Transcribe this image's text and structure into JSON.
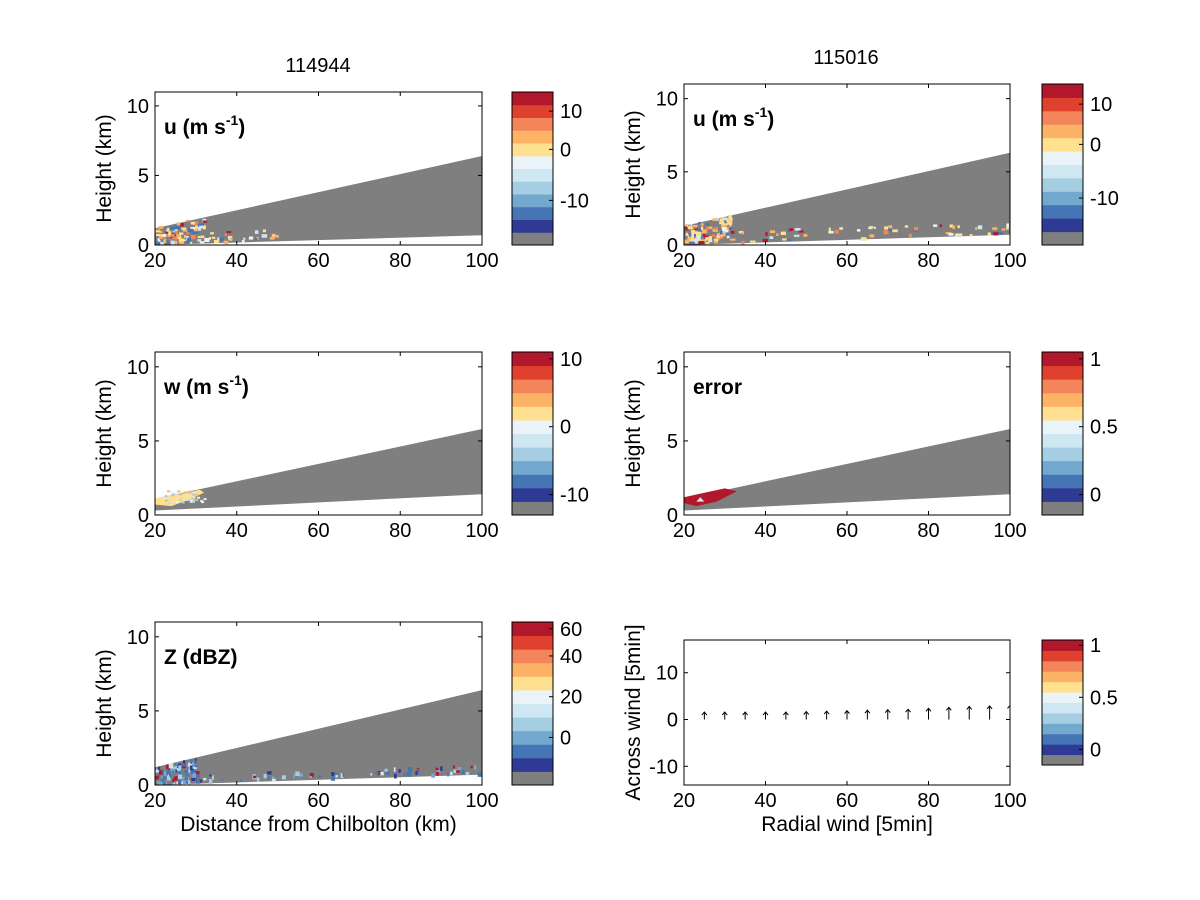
{
  "palette": [
    "#7f7f7f",
    "#2f3a95",
    "#4575b4",
    "#74a9cf",
    "#a6cee3",
    "#cfe7f2",
    "#eaf3f7",
    "#fee090",
    "#fdb366",
    "#f4845a",
    "#e0412e",
    "#b2182b"
  ],
  "chart_data": [
    {
      "id": "u-left",
      "type": "heatmap",
      "title": "114944",
      "label": "u (m s",
      "label_sup": "-1",
      "label_tail": ")",
      "ylabel": "Height (km)",
      "xlabel": "",
      "xlim": [
        20,
        100
      ],
      "ylim": [
        0,
        11
      ],
      "xticks": [
        20,
        40,
        60,
        80,
        100
      ],
      "yticks": [
        0,
        5,
        10
      ],
      "wedge": {
        "bottom_start": 0.0,
        "bottom_end": 0.7,
        "top_start": 1.2,
        "top_end": 6.4
      },
      "speckle": "near",
      "colorbar": {
        "ticks": [
          {
            "label": "10",
            "level": 10
          },
          {
            "label": "0",
            "level": 7
          },
          {
            "label": "-10",
            "level": 3
          }
        ]
      }
    },
    {
      "id": "u-right",
      "type": "heatmap",
      "title": "115016",
      "label": "u (m s",
      "label_sup": "-1",
      "label_tail": ")",
      "ylabel": "Height (km)",
      "xlabel": "",
      "xlim": [
        20,
        100
      ],
      "ylim": [
        0,
        11
      ],
      "xticks": [
        20,
        40,
        60,
        80,
        100
      ],
      "yticks": [
        0,
        5,
        10
      ],
      "wedge": {
        "bottom_start": 0.0,
        "bottom_end": 0.7,
        "top_start": 1.3,
        "top_end": 6.3
      },
      "speckle": "wide",
      "colorbar": {
        "ticks": [
          {
            "label": "10",
            "level": 10
          },
          {
            "label": "0",
            "level": 7
          },
          {
            "label": "-10",
            "level": 3
          }
        ]
      }
    },
    {
      "id": "w-left",
      "type": "heatmap",
      "title": "",
      "label": "w (m s",
      "label_sup": "-1",
      "label_tail": ")",
      "ylabel": "Height (km)",
      "xlabel": "",
      "xlim": [
        20,
        100
      ],
      "ylim": [
        0,
        11
      ],
      "xticks": [
        20,
        40,
        60,
        80,
        100
      ],
      "yticks": [
        0,
        5,
        10
      ],
      "wedge": {
        "bottom_start": 0.3,
        "bottom_end": 1.4,
        "top_start": 1.1,
        "top_end": 5.8
      },
      "speckle": "wblob",
      "colorbar": {
        "ticks": [
          {
            "label": "10",
            "level": 11
          },
          {
            "label": "0",
            "level": 6
          },
          {
            "label": "-10",
            "level": 1
          }
        ]
      }
    },
    {
      "id": "error-right",
      "type": "heatmap",
      "title": "",
      "label": "error",
      "label_sup": "",
      "label_tail": "",
      "ylabel": "Height (km)",
      "xlabel": "",
      "xlim": [
        20,
        100
      ],
      "ylim": [
        0,
        11
      ],
      "xticks": [
        20,
        40,
        60,
        80,
        100
      ],
      "yticks": [
        0,
        5,
        10
      ],
      "wedge": {
        "bottom_start": 0.3,
        "bottom_end": 1.4,
        "top_start": 1.1,
        "top_end": 5.8
      },
      "speckle": "errblob",
      "colorbar": {
        "ticks": [
          {
            "label": "1",
            "level": 11
          },
          {
            "label": "0.5",
            "level": 6
          },
          {
            "label": "0",
            "level": 1
          }
        ]
      }
    },
    {
      "id": "z-left",
      "type": "heatmap",
      "title": "",
      "label": "Z (dBZ)",
      "label_sup": "",
      "label_tail": "",
      "ylabel": "Height (km)",
      "xlabel": "Distance from Chilbolton (km)",
      "xlim": [
        20,
        100
      ],
      "ylim": [
        0,
        11
      ],
      "xticks": [
        20,
        40,
        60,
        80,
        100
      ],
      "yticks": [
        0,
        5,
        10
      ],
      "wedge": {
        "bottom_start": 0.0,
        "bottom_end": 0.7,
        "top_start": 1.2,
        "top_end": 6.4
      },
      "speckle": "zscatter",
      "colorbar": {
        "ticks": [
          {
            "label": "60",
            "level": 11
          },
          {
            "label": "40",
            "level": 9
          },
          {
            "label": "20",
            "level": 6
          },
          {
            "label": "0",
            "level": 3
          }
        ]
      }
    },
    {
      "id": "quiver-right",
      "type": "scatter",
      "title": "",
      "label": "",
      "label_sup": "",
      "label_tail": "",
      "ylabel": "Across wind [5min]",
      "xlabel": "Radial wind [5min]",
      "xlim": [
        20,
        100
      ],
      "ylim": [
        -14,
        17
      ],
      "xticks": [
        20,
        40,
        60,
        80,
        100
      ],
      "yticks": [
        -10,
        0,
        10
      ],
      "arrows": {
        "x": [
          25,
          30,
          35,
          40,
          45,
          50,
          55,
          60,
          65,
          70,
          75,
          80,
          85,
          90,
          95,
          100
        ],
        "length": [
          1.6,
          1.6,
          1.6,
          1.6,
          1.6,
          1.7,
          1.8,
          1.9,
          2.0,
          2.1,
          2.2,
          2.4,
          2.6,
          2.8,
          2.9,
          3.0
        ]
      },
      "colorbar": {
        "ticks": [
          {
            "label": "1",
            "level": 11
          },
          {
            "label": "0.5",
            "level": 6
          },
          {
            "label": "0",
            "level": 1
          }
        ]
      }
    }
  ]
}
